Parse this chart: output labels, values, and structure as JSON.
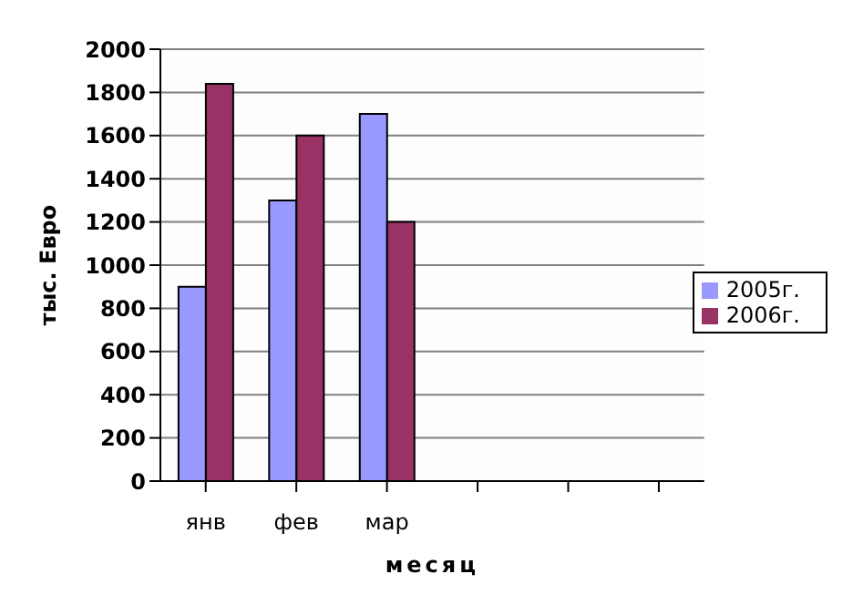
{
  "chart_data": {
    "type": "bar",
    "xlabel": "месяц",
    "ylabel": "тыс. Евро",
    "categories": [
      "янв",
      "фев",
      "мар",
      null,
      null,
      null
    ],
    "series": [
      {
        "name": "2005г.",
        "color": "#9999ff",
        "values": [
          900,
          1300,
          1700,
          null,
          null,
          null
        ]
      },
      {
        "name": "2006г.",
        "color": "#993366",
        "values": [
          1840,
          1600,
          1200,
          null,
          null,
          null
        ]
      }
    ],
    "ylim": [
      0,
      2000
    ],
    "yticks": [
      0,
      200,
      400,
      600,
      800,
      1000,
      1200,
      1400,
      1600,
      1800,
      2000
    ],
    "grid": "y",
    "legend": "right"
  }
}
